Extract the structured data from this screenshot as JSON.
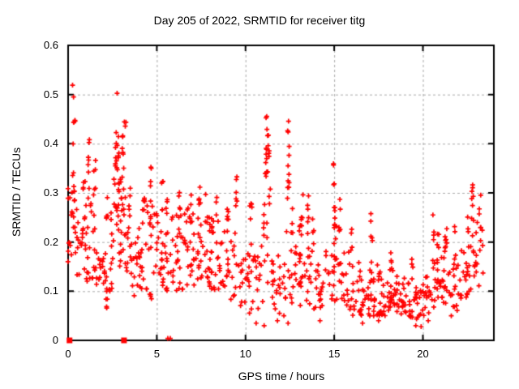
{
  "window": {
    "background": "#ffffff",
    "text_color": "#000000"
  },
  "chart_data": {
    "type": "scatter",
    "title": "Day 205 of 2022, SRMTID for receiver titg",
    "xlabel": "GPS time / hours",
    "ylabel": "SRMTID / TECUs",
    "xlim": [
      0,
      24
    ],
    "ylim": [
      0,
      0.6
    ],
    "x_ticks": {
      "values": [
        0,
        5,
        10,
        15,
        20
      ],
      "labels": [
        "0",
        "5",
        "10",
        "15",
        "20"
      ]
    },
    "y_ticks": {
      "values": [
        0,
        0.1,
        0.2,
        0.3,
        0.4,
        0.5,
        0.6
      ],
      "labels": [
        "0",
        "0.1",
        "0.2",
        "0.3",
        "0.4",
        "0.5",
        "0.6"
      ]
    },
    "grid": {
      "show": true,
      "color": "#a8a8a8",
      "dash": [
        3,
        3
      ]
    },
    "border_color": "#000000",
    "marker": {
      "shape": "plus",
      "color": "#ff0000",
      "size": 7
    },
    "legend": "none",
    "seed": 987654,
    "band_clusters": [
      [
        0.25,
        0.16,
        0.32,
        22
      ],
      [
        0.75,
        0.13,
        0.28,
        18
      ],
      [
        1.25,
        0.12,
        0.3,
        20
      ],
      [
        1.75,
        0.11,
        0.25,
        16
      ],
      [
        2.25,
        0.1,
        0.26,
        18
      ],
      [
        2.75,
        0.15,
        0.35,
        22
      ],
      [
        3.25,
        0.14,
        0.33,
        20
      ],
      [
        3.75,
        0.09,
        0.24,
        16
      ],
      [
        4.25,
        0.1,
        0.28,
        18
      ],
      [
        4.75,
        0.08,
        0.26,
        18
      ],
      [
        5.25,
        0.11,
        0.28,
        18
      ],
      [
        5.75,
        0.1,
        0.26,
        16
      ],
      [
        6.25,
        0.1,
        0.28,
        18
      ],
      [
        6.75,
        0.11,
        0.27,
        18
      ],
      [
        7.25,
        0.1,
        0.26,
        18
      ],
      [
        7.75,
        0.11,
        0.25,
        18
      ],
      [
        8.25,
        0.1,
        0.25,
        18
      ],
      [
        8.75,
        0.1,
        0.24,
        16
      ],
      [
        9.25,
        0.08,
        0.22,
        14
      ],
      [
        9.75,
        0.05,
        0.18,
        12
      ],
      [
        10.25,
        0.05,
        0.2,
        14
      ],
      [
        10.75,
        0.06,
        0.18,
        12
      ],
      [
        11.15,
        0.1,
        0.33,
        12
      ],
      [
        11.65,
        0.06,
        0.18,
        14
      ],
      [
        12.15,
        0.05,
        0.16,
        12
      ],
      [
        12.45,
        0.08,
        0.28,
        10
      ],
      [
        12.85,
        0.07,
        0.2,
        14
      ],
      [
        13.25,
        0.08,
        0.24,
        16
      ],
      [
        13.75,
        0.06,
        0.2,
        14
      ],
      [
        14.25,
        0.05,
        0.16,
        14
      ],
      [
        14.75,
        0.07,
        0.2,
        14
      ],
      [
        15.25,
        0.08,
        0.24,
        16
      ],
      [
        15.75,
        0.06,
        0.18,
        14
      ],
      [
        16.25,
        0.05,
        0.16,
        16
      ],
      [
        16.75,
        0.05,
        0.15,
        16
      ],
      [
        17.25,
        0.05,
        0.16,
        18
      ],
      [
        17.75,
        0.05,
        0.14,
        18
      ],
      [
        18.25,
        0.06,
        0.15,
        20
      ],
      [
        18.75,
        0.05,
        0.14,
        18
      ],
      [
        19.25,
        0.04,
        0.12,
        16
      ],
      [
        19.75,
        0.04,
        0.12,
        16
      ],
      [
        20.25,
        0.05,
        0.14,
        16
      ],
      [
        20.75,
        0.06,
        0.16,
        16
      ],
      [
        21.25,
        0.07,
        0.2,
        16
      ],
      [
        21.75,
        0.06,
        0.18,
        14
      ],
      [
        22.25,
        0.08,
        0.22,
        14
      ],
      [
        22.75,
        0.1,
        0.26,
        16
      ],
      [
        23.15,
        0.1,
        0.24,
        12
      ]
    ],
    "spike_clusters": [
      [
        0.28,
        0.3,
        0.52,
        8
      ],
      [
        0.35,
        0.44,
        0.455,
        3
      ],
      [
        0.9,
        0.28,
        0.33,
        4
      ],
      [
        1.18,
        0.28,
        0.43,
        8
      ],
      [
        1.5,
        0.29,
        0.37,
        5
      ],
      [
        2.15,
        0.065,
        0.11,
        5
      ],
      [
        2.2,
        0.24,
        0.3,
        4
      ],
      [
        2.71,
        0.35,
        0.525,
        10
      ],
      [
        2.85,
        0.3,
        0.42,
        8
      ],
      [
        3.1,
        0.33,
        0.478,
        7
      ],
      [
        3.2,
        0.435,
        0.45,
        3
      ],
      [
        3.45,
        0.25,
        0.33,
        5
      ],
      [
        4.3,
        0.24,
        0.31,
        5
      ],
      [
        4.7,
        0.26,
        0.375,
        6
      ],
      [
        5.3,
        0.26,
        0.35,
        5
      ],
      [
        5.55,
        0.24,
        0.31,
        4
      ],
      [
        6.3,
        0.25,
        0.31,
        5
      ],
      [
        6.9,
        0.24,
        0.3,
        4
      ],
      [
        7.4,
        0.25,
        0.315,
        5
      ],
      [
        7.8,
        0.24,
        0.3,
        4
      ],
      [
        8.4,
        0.24,
        0.3,
        4
      ],
      [
        9.0,
        0.24,
        0.31,
        5
      ],
      [
        9.5,
        0.26,
        0.335,
        6
      ],
      [
        10.3,
        0.18,
        0.29,
        6
      ],
      [
        11.15,
        0.33,
        0.515,
        12
      ],
      [
        11.3,
        0.2,
        0.42,
        9
      ],
      [
        12.42,
        0.28,
        0.467,
        12
      ],
      [
        13.2,
        0.2,
        0.3,
        6
      ],
      [
        13.55,
        0.22,
        0.3,
        5
      ],
      [
        13.8,
        0.18,
        0.26,
        5
      ],
      [
        15.0,
        0.24,
        0.36,
        8
      ],
      [
        15.3,
        0.2,
        0.3,
        5
      ],
      [
        16.0,
        0.16,
        0.23,
        4
      ],
      [
        17.1,
        0.14,
        0.285,
        6
      ],
      [
        18.2,
        0.13,
        0.19,
        5
      ],
      [
        19.4,
        0.11,
        0.17,
        4
      ],
      [
        20.6,
        0.14,
        0.27,
        6
      ],
      [
        20.85,
        0.15,
        0.25,
        5
      ],
      [
        21.3,
        0.18,
        0.3,
        7
      ],
      [
        21.8,
        0.13,
        0.25,
        5
      ],
      [
        22.8,
        0.24,
        0.32,
        8
      ],
      [
        23.2,
        0.2,
        0.31,
        6
      ]
    ],
    "extra_points": [
      [
        5.62,
        0.004
      ],
      [
        5.76,
        0.004
      ],
      [
        10.6,
        0.035
      ],
      [
        11.05,
        0.03
      ],
      [
        11.8,
        0.04
      ],
      [
        12.4,
        0.035
      ],
      [
        14.2,
        0.04
      ],
      [
        16.6,
        0.035
      ],
      [
        17.5,
        0.04
      ],
      [
        19.6,
        0.03
      ],
      [
        19.9,
        0.028
      ],
      [
        20.3,
        0.04
      ],
      [
        21.6,
        0.05
      ]
    ],
    "zero_square_points_x": [
      0.08,
      3.15
    ]
  }
}
